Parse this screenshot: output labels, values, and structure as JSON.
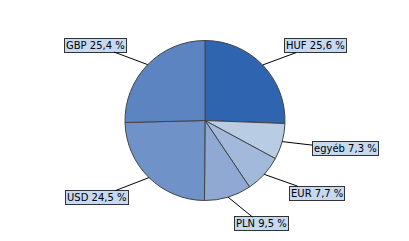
{
  "chart_data": {
    "type": "pie",
    "categories": [
      "HUF",
      "egyéb",
      "EUR",
      "PLN",
      "USD",
      "GBP"
    ],
    "values": [
      25.6,
      7.3,
      7.7,
      9.5,
      24.5,
      25.4
    ],
    "value_labels": [
      "HUF 25,6 %",
      "egyéb 7,3 %",
      "EUR 7,7 %",
      "PLN 9,5 %",
      "USD 24,5 %",
      "GBP 25,4 %"
    ],
    "colors": [
      "#2e64b0",
      "#b8cce4",
      "#a3b9db",
      "#8fa9d4",
      "#6f93c8",
      "#5b84c0"
    ],
    "data_labels": true
  }
}
